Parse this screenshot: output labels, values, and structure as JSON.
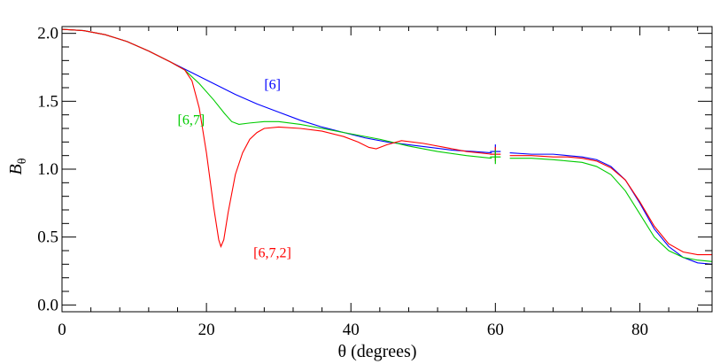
{
  "chart_data": {
    "type": "line",
    "xlabel": "θ (degrees)",
    "ylabel_main": "B",
    "ylabel_sub": "θ",
    "xlim": [
      0,
      90
    ],
    "ylim": [
      -0.05,
      2.05
    ],
    "xticks": [
      0,
      20,
      40,
      60,
      80
    ],
    "xtick_labels": [
      "0",
      "20",
      "40",
      "60",
      "80"
    ],
    "yticks": [
      0.0,
      0.5,
      1.0,
      1.5,
      2.0
    ],
    "ytick_labels": [
      "0.0",
      "0.5",
      "1.0",
      "1.5",
      "2.0"
    ],
    "x_minor_step": 4,
    "y_minor_step": 0.1,
    "grid": false,
    "series": [
      {
        "label": "[6]",
        "color": "#0000ff",
        "label_pos": [
          28,
          1.59
        ],
        "points": [
          [
            0,
            2.03
          ],
          [
            3,
            2.02
          ],
          [
            6,
            1.99
          ],
          [
            9,
            1.94
          ],
          [
            12,
            1.87
          ],
          [
            15,
            1.79
          ],
          [
            18,
            1.71
          ],
          [
            21,
            1.63
          ],
          [
            24,
            1.55
          ],
          [
            27,
            1.48
          ],
          [
            30,
            1.42
          ],
          [
            33,
            1.36
          ],
          [
            36,
            1.31
          ],
          [
            39,
            1.27
          ],
          [
            42,
            1.23
          ],
          [
            45,
            1.2
          ],
          [
            48,
            1.18
          ],
          [
            51,
            1.16
          ],
          [
            54,
            1.14
          ],
          [
            57,
            1.13
          ],
          [
            59.5,
            1.12
          ],
          [
            62,
            1.12
          ],
          [
            65,
            1.11
          ],
          [
            68,
            1.11
          ],
          [
            70,
            1.1
          ],
          [
            72,
            1.09
          ],
          [
            74,
            1.07
          ],
          [
            76,
            1.02
          ],
          [
            78,
            0.92
          ],
          [
            80,
            0.75
          ],
          [
            82,
            0.56
          ],
          [
            84,
            0.43
          ],
          [
            86,
            0.35
          ],
          [
            88,
            0.31
          ],
          [
            90,
            0.3
          ]
        ]
      },
      {
        "label": "[6,7]",
        "color": "#00cc00",
        "label_pos": [
          16,
          1.33
        ],
        "points": [
          [
            0,
            2.03
          ],
          [
            3,
            2.02
          ],
          [
            6,
            1.99
          ],
          [
            9,
            1.94
          ],
          [
            12,
            1.87
          ],
          [
            15,
            1.79
          ],
          [
            17,
            1.73
          ],
          [
            19,
            1.63
          ],
          [
            21,
            1.51
          ],
          [
            22.5,
            1.41
          ],
          [
            23.5,
            1.35
          ],
          [
            24.5,
            1.33
          ],
          [
            26,
            1.34
          ],
          [
            28,
            1.35
          ],
          [
            30,
            1.35
          ],
          [
            33,
            1.33
          ],
          [
            36,
            1.3
          ],
          [
            40,
            1.26
          ],
          [
            44,
            1.22
          ],
          [
            48,
            1.17
          ],
          [
            52,
            1.13
          ],
          [
            56,
            1.1
          ],
          [
            59.5,
            1.08
          ],
          [
            62,
            1.08
          ],
          [
            65,
            1.08
          ],
          [
            68,
            1.07
          ],
          [
            70,
            1.06
          ],
          [
            72,
            1.05
          ],
          [
            74,
            1.02
          ],
          [
            76,
            0.96
          ],
          [
            78,
            0.84
          ],
          [
            80,
            0.67
          ],
          [
            82,
            0.5
          ],
          [
            84,
            0.4
          ],
          [
            86,
            0.35
          ],
          [
            88,
            0.33
          ],
          [
            90,
            0.32
          ]
        ]
      },
      {
        "label": "[6,7,2]",
        "color": "#ff0000",
        "label_pos": [
          26.5,
          0.35
        ],
        "points": [
          [
            0,
            2.03
          ],
          [
            3,
            2.02
          ],
          [
            6,
            1.99
          ],
          [
            9,
            1.94
          ],
          [
            12,
            1.87
          ],
          [
            15,
            1.79
          ],
          [
            17,
            1.73
          ],
          [
            18,
            1.65
          ],
          [
            19,
            1.45
          ],
          [
            20,
            1.12
          ],
          [
            21,
            0.72
          ],
          [
            21.7,
            0.48
          ],
          [
            22,
            0.43
          ],
          [
            22.4,
            0.48
          ],
          [
            23,
            0.68
          ],
          [
            24,
            0.96
          ],
          [
            25,
            1.12
          ],
          [
            26,
            1.22
          ],
          [
            27,
            1.27
          ],
          [
            28,
            1.3
          ],
          [
            30,
            1.31
          ],
          [
            33,
            1.3
          ],
          [
            36,
            1.28
          ],
          [
            39,
            1.24
          ],
          [
            41,
            1.2
          ],
          [
            42.5,
            1.16
          ],
          [
            43.5,
            1.15
          ],
          [
            45,
            1.18
          ],
          [
            47,
            1.21
          ],
          [
            50,
            1.19
          ],
          [
            53,
            1.16
          ],
          [
            56,
            1.13
          ],
          [
            59.5,
            1.11
          ],
          [
            62,
            1.1
          ],
          [
            65,
            1.1
          ],
          [
            68,
            1.09
          ],
          [
            70,
            1.09
          ],
          [
            72,
            1.08
          ],
          [
            74,
            1.06
          ],
          [
            76,
            1.01
          ],
          [
            78,
            0.92
          ],
          [
            80,
            0.76
          ],
          [
            82,
            0.58
          ],
          [
            84,
            0.45
          ],
          [
            86,
            0.39
          ],
          [
            88,
            0.37
          ],
          [
            90,
            0.37
          ]
        ]
      }
    ],
    "markers": [
      {
        "x": 60,
        "y": 1.13,
        "color": "#0000ff"
      },
      {
        "x": 60,
        "y": 1.11,
        "color": "#ff0000"
      },
      {
        "x": 60,
        "y": 1.09,
        "color": "#00cc00"
      }
    ]
  }
}
